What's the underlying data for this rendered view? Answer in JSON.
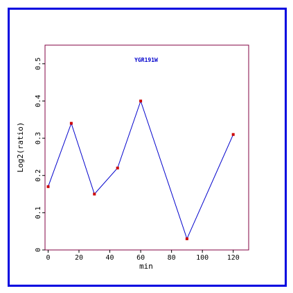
{
  "chart_data": {
    "type": "line",
    "title": "YGR191W",
    "xlabel": "min",
    "ylabel": "Log2(ratio)",
    "x": [
      0,
      15,
      30,
      45,
      60,
      90,
      120
    ],
    "series": [
      {
        "values": [
          0.17,
          0.34,
          0.15,
          0.22,
          0.4,
          0.03,
          0.31
        ]
      }
    ],
    "xlim": [
      -2,
      130
    ],
    "ylim": [
      0,
      0.55
    ],
    "xticks": [
      0,
      20,
      40,
      60,
      80,
      100,
      120
    ],
    "xtick_labels": [
      "0",
      "20",
      "40",
      "60",
      "80",
      "100",
      "120"
    ],
    "yticks": [
      0,
      0.1,
      0.2,
      0.3,
      0.4,
      0.5
    ],
    "ytick_labels": [
      "0",
      "0.1",
      "0.2",
      "0.3",
      "0.4",
      "0.5"
    ],
    "grid": false,
    "colors": {
      "line": "#0000cc",
      "marker": "#cc0000",
      "plot_border": "#800040",
      "frame_border": "#0000e0",
      "title": "#0000cc"
    }
  }
}
